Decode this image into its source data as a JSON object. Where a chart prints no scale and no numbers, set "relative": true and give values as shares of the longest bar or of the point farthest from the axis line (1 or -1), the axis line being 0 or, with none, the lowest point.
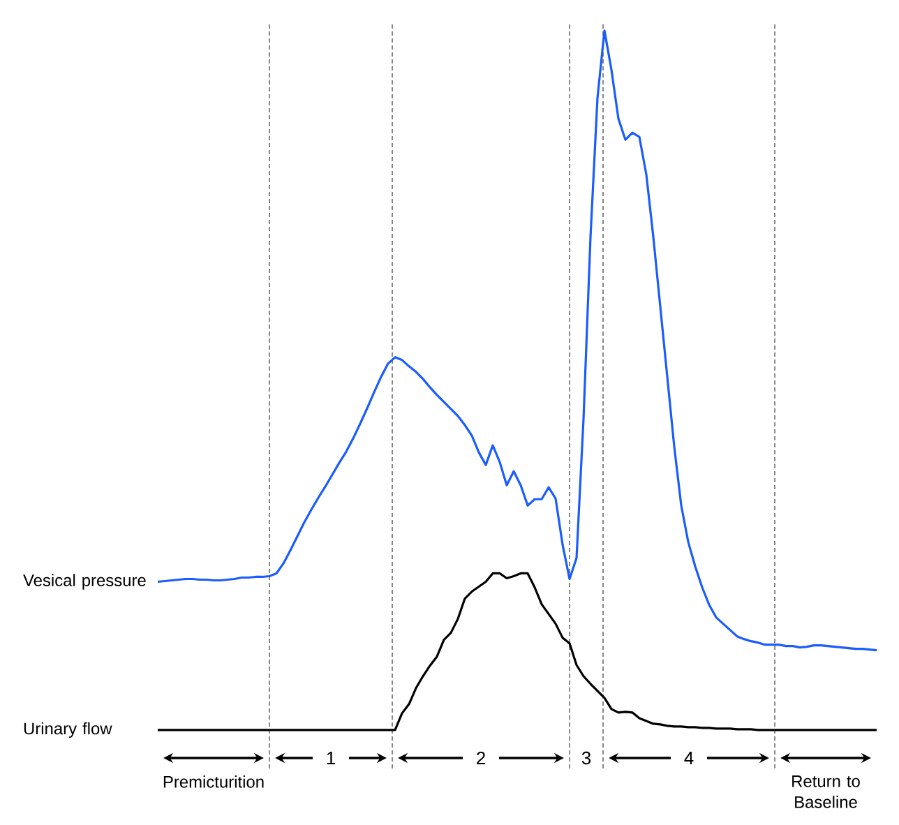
{
  "chart_data": {
    "type": "line",
    "relative": true,
    "legend": false,
    "categories": [
      null,
      null,
      null,
      null,
      null,
      null,
      null,
      null,
      null,
      null,
      null,
      null,
      null,
      null,
      null,
      null,
      null,
      null,
      null,
      null,
      null,
      null,
      null,
      null,
      null,
      null,
      null,
      null,
      null,
      null,
      null,
      null,
      null,
      null,
      null,
      null,
      null,
      null,
      null,
      null,
      null,
      null,
      null,
      null,
      null,
      null,
      null,
      null,
      null,
      null,
      null,
      null,
      null,
      null,
      null,
      null,
      null,
      null,
      null,
      null,
      null,
      null,
      null,
      null,
      null,
      null,
      null,
      null,
      null,
      null,
      null,
      null,
      null,
      null,
      null,
      null,
      null,
      null,
      null,
      null,
      null,
      null,
      null,
      null,
      null,
      null,
      null,
      null,
      null,
      null,
      null,
      null,
      null,
      null,
      null,
      null,
      null,
      null,
      null,
      null,
      null,
      null,
      null,
      null
    ],
    "series": [
      {
        "name": "Vesical pressure",
        "color": "#1a5cff",
        "values": [
          0.212,
          0.213,
          0.214,
          0.215,
          0.216,
          0.216,
          0.215,
          0.215,
          0.214,
          0.214,
          0.215,
          0.216,
          0.218,
          0.218,
          0.219,
          0.219,
          0.22,
          0.224,
          0.238,
          0.257,
          0.277,
          0.297,
          0.315,
          0.332,
          0.348,
          0.365,
          0.382,
          0.398,
          0.417,
          0.438,
          0.46,
          0.483,
          0.505,
          0.524,
          0.533,
          0.529,
          0.52,
          0.512,
          0.502,
          0.49,
          0.479,
          0.469,
          0.459,
          0.449,
          0.436,
          0.421,
          0.397,
          0.379,
          0.407,
          0.383,
          0.35,
          0.37,
          0.35,
          0.321,
          0.33,
          0.33,
          0.347,
          0.331,
          0.265,
          0.216,
          0.246,
          0.445,
          0.705,
          0.904,
          1,
          0.944,
          0.874,
          0.844,
          0.854,
          0.848,
          0.794,
          0.705,
          0.605,
          0.505,
          0.405,
          0.321,
          0.269,
          0.234,
          0.204,
          0.179,
          0.161,
          0.152,
          0.143,
          0.134,
          0.13,
          0.127,
          0.125,
          0.122,
          0.122,
          0.122,
          0.12,
          0.12,
          0.118,
          0.119,
          0.121,
          0.121,
          0.12,
          0.119,
          0.118,
          0.117,
          0.116,
          0.116,
          0.115,
          0.114
        ]
      },
      {
        "name": "Urinary flow",
        "color": "#000000",
        "values": [
          0,
          0,
          0,
          0,
          0,
          0,
          0,
          0,
          0,
          0,
          0,
          0,
          0,
          0,
          0,
          0,
          0,
          0,
          0,
          0,
          0,
          0,
          0,
          0,
          0,
          0,
          0,
          0,
          0,
          0,
          0,
          0,
          0,
          0,
          0,
          0.024,
          0.037,
          0.06,
          0.077,
          0.092,
          0.105,
          0.129,
          0.139,
          0.159,
          0.188,
          0.198,
          0.205,
          0.212,
          0.224,
          0.224,
          0.217,
          0.22,
          0.224,
          0.224,
          0.204,
          0.18,
          0.166,
          0.152,
          0.132,
          0.124,
          0.093,
          0.077,
          0.066,
          0.056,
          0.046,
          0.03,
          0.025,
          0.026,
          0.025,
          0.017,
          0.013,
          0.009,
          0.008,
          0.006,
          0.005,
          0.005,
          0.004,
          0.004,
          0.003,
          0.003,
          0.002,
          0.002,
          0.002,
          0.001,
          0.001,
          0.001,
          0,
          0,
          0,
          0,
          0,
          0,
          0,
          0,
          0,
          0,
          0,
          0,
          0,
          0,
          0,
          0,
          0,
          0
        ]
      }
    ],
    "annotations": [
      "Premicturition",
      "1",
      "2",
      "3",
      "4",
      "Return to Baseline"
    ]
  }
}
